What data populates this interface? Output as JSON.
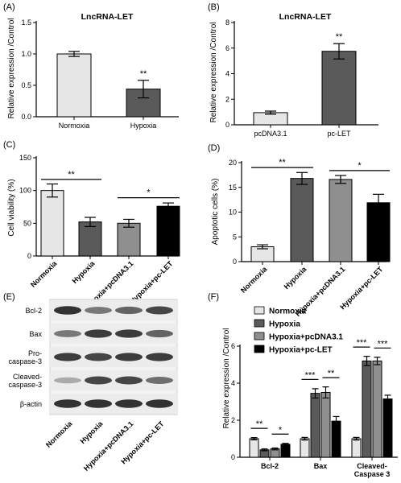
{
  "colors": {
    "normoxia": "#e6e6e6",
    "hypoxia": "#5a5a5a",
    "pcdna": "#8f8f8f",
    "pclet": "#000000",
    "pcdna_b": "#e6e6e6",
    "pclet_b": "#5a5a5a"
  },
  "panelE": {
    "label": "(E)",
    "rows": [
      "Bcl-2",
      "Bax",
      "Pro-\ncaspase-3",
      "Cleaved-\ncaspase-3",
      "β-actin"
    ],
    "lanes": [
      "Normoxia",
      "Hypoxia",
      "Hypoxia+pcDNA3.1",
      "Hypoxia+pc-LET"
    ],
    "intensity": [
      [
        0.9,
        0.55,
        0.65,
        0.8
      ],
      [
        0.55,
        0.85,
        0.85,
        0.65
      ],
      [
        0.85,
        0.8,
        0.85,
        0.85
      ],
      [
        0.3,
        0.8,
        0.8,
        0.6
      ],
      [
        0.9,
        0.9,
        0.9,
        0.9
      ]
    ]
  },
  "chart_data": [
    {
      "id": "A",
      "panel": "(A)",
      "type": "bar",
      "title": "LncRNA-LET",
      "ylabel": "Relative expression /Control",
      "categories": [
        "Normoxia",
        "Hypoxia"
      ],
      "values": [
        1.0,
        0.44
      ],
      "errors": [
        0.04,
        0.14
      ],
      "colorKeys": [
        "normoxia",
        "hypoxia"
      ],
      "ylim": [
        0,
        1.5
      ],
      "yticks": [
        "0.0",
        "0.5",
        "1.0",
        "1.5"
      ],
      "sig": [
        {
          "text": "**",
          "bar": 1
        }
      ]
    },
    {
      "id": "B",
      "panel": "(B)",
      "type": "bar",
      "title": "LncRNA-LET",
      "ylabel": "Relative expression /Control",
      "categories": [
        "pcDNA3.1",
        "pc-LET"
      ],
      "values": [
        0.95,
        5.75
      ],
      "errors": [
        0.12,
        0.6
      ],
      "colorKeys": [
        "pcdna_b",
        "pclet_b"
      ],
      "ylim": [
        0,
        8
      ],
      "yticks": [
        "0",
        "2",
        "4",
        "6",
        "8"
      ],
      "sig": [
        {
          "text": "**",
          "bar": 1
        }
      ]
    },
    {
      "id": "C",
      "panel": "(C)",
      "type": "bar",
      "ylabel": "Cell viability (%)",
      "categories": [
        "Normoxia",
        "Hypoxia",
        "Hypoxia+pcDNA3.1",
        "Hypoxia+pc-LET"
      ],
      "values": [
        100,
        52,
        50,
        76
      ],
      "errors": [
        10,
        7,
        6,
        5
      ],
      "colorKeys": [
        "normoxia",
        "hypoxia",
        "pcdna",
        "pclet"
      ],
      "ylim": [
        0,
        150
      ],
      "yticks": [
        "0",
        "50",
        "100",
        "150"
      ],
      "sig": [
        {
          "text": "**",
          "from": 0,
          "to": 1,
          "at": 117
        },
        {
          "text": "*",
          "from": 2,
          "to": 3,
          "at": 89
        }
      ]
    },
    {
      "id": "D",
      "panel": "(D)",
      "type": "bar",
      "ylabel": "Apoptotic cells (%)",
      "categories": [
        "Normoxia",
        "Hypoxia",
        "Hypoxia+pcDNA3.1",
        "Hypoxia+pc-LET"
      ],
      "values": [
        3.0,
        16.8,
        16.6,
        11.9
      ],
      "errors": [
        0.4,
        1.2,
        0.8,
        1.7
      ],
      "colorKeys": [
        "normoxia",
        "hypoxia",
        "pcdna",
        "pclet"
      ],
      "ylim": [
        0,
        20
      ],
      "yticks": [
        "0",
        "5",
        "10",
        "15",
        "20"
      ],
      "sig": [
        {
          "text": "**",
          "from": 0,
          "to": 1,
          "at": 19.0
        },
        {
          "text": "*",
          "from": 2,
          "to": 3,
          "at": 18.4
        }
      ]
    },
    {
      "id": "F",
      "panel": "(F)",
      "type": "bar",
      "ylabel": "Relative expression /Control",
      "categories": [
        "Bcl-2",
        "Bax",
        "Cleaved-\nCaspase 3"
      ],
      "legend": [
        "Normoxia",
        "Hypoxia",
        "Hypoxia+pcDNA3.1",
        "Hypoxia+pc-LET"
      ],
      "colorKeys": [
        "normoxia",
        "hypoxia",
        "pcdna",
        "pclet"
      ],
      "series": [
        {
          "name": "Normoxia",
          "values": [
            1.0,
            1.0,
            1.0
          ],
          "errors": [
            0.06,
            0.07,
            0.07
          ]
        },
        {
          "name": "Hypoxia",
          "values": [
            0.4,
            3.45,
            5.2
          ],
          "errors": [
            0.05,
            0.25,
            0.25
          ]
        },
        {
          "name": "Hypoxia+pcDNA3.1",
          "values": [
            0.45,
            3.5,
            5.2
          ],
          "errors": [
            0.05,
            0.3,
            0.2
          ]
        },
        {
          "name": "Hypoxia+pc-LET",
          "values": [
            0.7,
            1.95,
            3.15
          ],
          "errors": [
            0.05,
            0.25,
            0.2
          ]
        }
      ],
      "ylim": [
        0,
        6
      ],
      "yticks": [
        "0",
        "2",
        "4",
        "6"
      ],
      "sig": [
        {
          "text": "**",
          "group": 0,
          "from": 0,
          "to": 1
        },
        {
          "text": "*",
          "group": 0,
          "from": 2,
          "to": 3
        },
        {
          "text": "***",
          "group": 1,
          "from": 0,
          "to": 1
        },
        {
          "text": "**",
          "group": 1,
          "from": 2,
          "to": 3
        },
        {
          "text": "***",
          "group": 2,
          "from": 0,
          "to": 1
        },
        {
          "text": "***",
          "group": 2,
          "from": 2,
          "to": 3
        }
      ]
    }
  ]
}
